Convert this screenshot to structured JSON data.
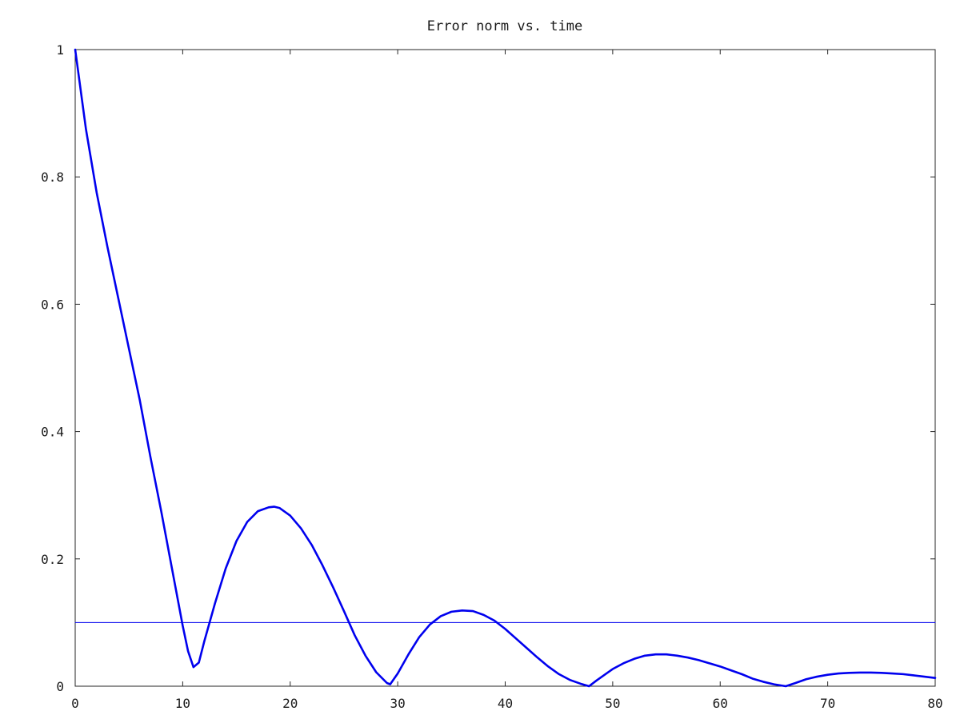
{
  "chart_data": {
    "type": "line",
    "title": "Error norm vs. time",
    "xlabel": "",
    "ylabel": "",
    "xlim": [
      0,
      80
    ],
    "ylim": [
      0,
      1
    ],
    "grid": false,
    "xticks": [
      0,
      10,
      20,
      30,
      40,
      50,
      60,
      70,
      80
    ],
    "yticks": [
      0,
      0.2,
      0.4,
      0.6,
      0.8,
      1
    ],
    "xtick_labels": [
      "0",
      "10",
      "20",
      "30",
      "40",
      "50",
      "60",
      "70",
      "80"
    ],
    "ytick_labels": [
      "0",
      "0.2",
      "0.4",
      "0.6",
      "0.8",
      "1"
    ],
    "series": [
      {
        "color": "#0000ee",
        "style": "solid-thick",
        "x": [
          0,
          1,
          2,
          3,
          4,
          5,
          6,
          7,
          8,
          9,
          10,
          10.5,
          11,
          11.5,
          12,
          13,
          14,
          15,
          16,
          17,
          18,
          18.5,
          19,
          20,
          21,
          22,
          23,
          24,
          25,
          26,
          27,
          28,
          29,
          29.3,
          30,
          31,
          32,
          33,
          34,
          35,
          36,
          37,
          38,
          39,
          40,
          41,
          42,
          43,
          44,
          45,
          46,
          47,
          47.8,
          48.5,
          50,
          51,
          52,
          53,
          54,
          55,
          55.5,
          56,
          57,
          58,
          59,
          60,
          61,
          62,
          63,
          64,
          65,
          66.1,
          67,
          68,
          69,
          70,
          71,
          72,
          73,
          74,
          75,
          76,
          77,
          78,
          79,
          80
        ],
        "y": [
          1.0,
          0.875,
          0.775,
          0.69,
          0.61,
          0.53,
          0.45,
          0.36,
          0.275,
          0.185,
          0.095,
          0.055,
          0.03,
          0.037,
          0.07,
          0.13,
          0.185,
          0.228,
          0.258,
          0.275,
          0.281,
          0.282,
          0.28,
          0.268,
          0.248,
          0.222,
          0.19,
          0.155,
          0.118,
          0.08,
          0.048,
          0.022,
          0.005,
          0.003,
          0.02,
          0.05,
          0.077,
          0.097,
          0.11,
          0.117,
          0.119,
          0.118,
          0.112,
          0.103,
          0.09,
          0.075,
          0.06,
          0.045,
          0.031,
          0.019,
          0.01,
          0.004,
          0.0,
          0.009,
          0.027,
          0.036,
          0.043,
          0.048,
          0.05,
          0.05,
          0.049,
          0.048,
          0.045,
          0.041,
          0.036,
          0.031,
          0.025,
          0.019,
          0.012,
          0.007,
          0.003,
          0.0,
          0.005,
          0.011,
          0.015,
          0.018,
          0.02,
          0.021,
          0.0215,
          0.0215,
          0.021,
          0.02,
          0.019,
          0.017,
          0.015,
          0.013
        ]
      },
      {
        "color": "#0000ee",
        "style": "solid-thin",
        "x": [
          0,
          80
        ],
        "y": [
          0.1,
          0.1
        ]
      }
    ]
  }
}
